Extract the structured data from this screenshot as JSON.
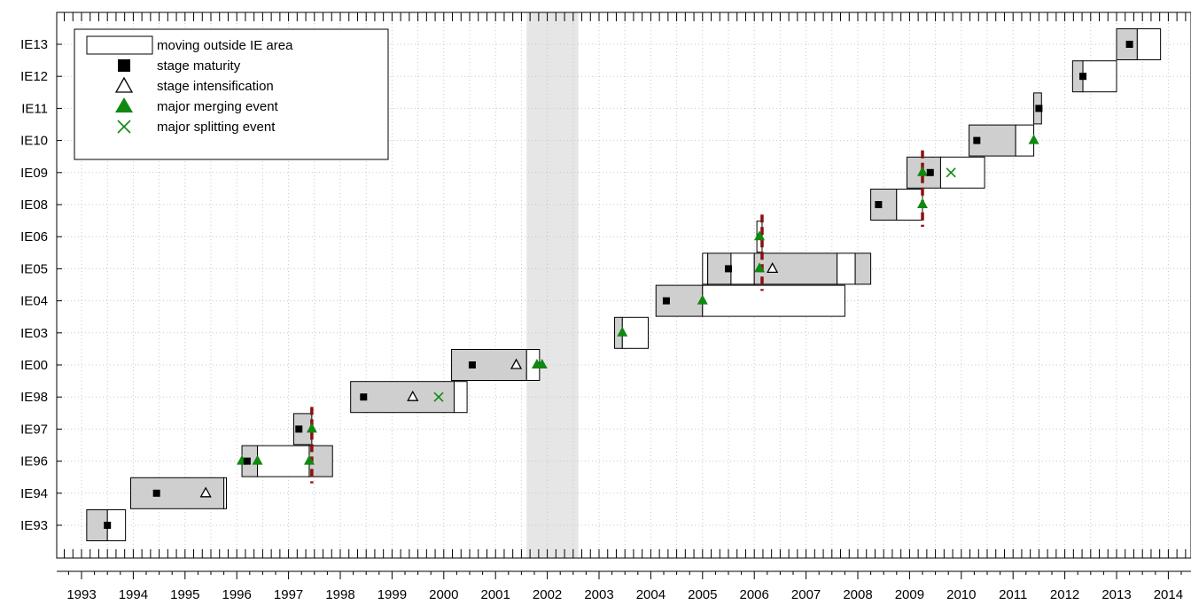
{
  "chart_data": {
    "type": "timeline",
    "xlim": [
      1992.5,
      2014.5
    ],
    "x_ticks": [
      1993,
      1994,
      1995,
      1996,
      1997,
      1998,
      1999,
      2000,
      2001,
      2002,
      2003,
      2004,
      2005,
      2006,
      2007,
      2008,
      2009,
      2010,
      2011,
      2012,
      2013,
      2014
    ],
    "events": [
      "IE93",
      "IE94",
      "IE96",
      "IE97",
      "IE98",
      "IE00",
      "IE03",
      "IE04",
      "IE05",
      "IE06",
      "IE08",
      "IE09",
      "IE10",
      "IE11",
      "IE12",
      "IE13"
    ],
    "grid": true,
    "shaded_period": [
      2001.6,
      2002.6
    ],
    "colors": {
      "inside": "#cfcfcf",
      "outside": "#ffffff",
      "merge": "#118811",
      "split": "#118811",
      "dashed": "#8b1010",
      "shade": "#e6e6e6"
    },
    "legend": {
      "position": "top-left",
      "entries": [
        {
          "key": "outside",
          "label": "moving outside IE area"
        },
        {
          "key": "maturity",
          "label": "stage maturity"
        },
        {
          "key": "intensification",
          "label": "stage intensification"
        },
        {
          "key": "merge",
          "label": "major merging event"
        },
        {
          "key": "split",
          "label": "major splitting event"
        }
      ]
    },
    "bars": [
      {
        "event": "IE93",
        "segments": [
          [
            1993.1,
            1993.5,
            "in"
          ],
          [
            1993.5,
            1993.85,
            "out"
          ]
        ]
      },
      {
        "event": "IE94",
        "segments": [
          [
            1993.95,
            1995.75,
            "in"
          ],
          [
            1995.75,
            1995.8,
            "out"
          ]
        ]
      },
      {
        "event": "IE96",
        "segments": [
          [
            1996.1,
            1996.4,
            "in"
          ],
          [
            1996.4,
            1997.4,
            "out"
          ],
          [
            1997.4,
            1997.85,
            "in"
          ]
        ]
      },
      {
        "event": "IE97",
        "segments": [
          [
            1997.1,
            1997.45,
            "in"
          ]
        ]
      },
      {
        "event": "IE98",
        "segments": [
          [
            1998.2,
            2000.2,
            "in"
          ],
          [
            2000.2,
            2000.45,
            "out"
          ]
        ]
      },
      {
        "event": "IE00",
        "segments": [
          [
            2000.15,
            2001.6,
            "in"
          ],
          [
            2001.6,
            2001.85,
            "out"
          ]
        ]
      },
      {
        "event": "IE03",
        "segments": [
          [
            2003.3,
            2003.45,
            "in"
          ],
          [
            2003.45,
            2003.95,
            "out"
          ]
        ]
      },
      {
        "event": "IE04",
        "segments": [
          [
            2004.1,
            2005.0,
            "in"
          ],
          [
            2005.0,
            2007.75,
            "out"
          ]
        ]
      },
      {
        "event": "IE05",
        "segments": [
          [
            2005.0,
            2005.1,
            "out"
          ],
          [
            2005.1,
            2005.55,
            "in"
          ],
          [
            2005.55,
            2006.0,
            "out"
          ],
          [
            2006.0,
            2007.6,
            "in"
          ],
          [
            2007.6,
            2007.95,
            "out"
          ],
          [
            2007.95,
            2008.25,
            "in"
          ]
        ]
      },
      {
        "event": "IE06",
        "segments": [
          [
            2006.05,
            2006.15,
            "out"
          ]
        ]
      },
      {
        "event": "IE08",
        "segments": [
          [
            2008.25,
            2008.75,
            "in"
          ],
          [
            2008.75,
            2009.25,
            "out"
          ]
        ]
      },
      {
        "event": "IE09",
        "segments": [
          [
            2008.95,
            2009.6,
            "in"
          ],
          [
            2009.6,
            2010.45,
            "out"
          ]
        ]
      },
      {
        "event": "IE10",
        "segments": [
          [
            2010.15,
            2011.05,
            "in"
          ],
          [
            2011.05,
            2011.4,
            "out"
          ]
        ]
      },
      {
        "event": "IE11",
        "segments": [
          [
            2011.4,
            2011.55,
            "in"
          ]
        ]
      },
      {
        "event": "IE12",
        "segments": [
          [
            2012.15,
            2012.35,
            "in"
          ],
          [
            2012.35,
            2013.0,
            "out"
          ]
        ]
      },
      {
        "event": "IE13",
        "segments": [
          [
            2013.0,
            2013.4,
            "in"
          ],
          [
            2013.4,
            2013.85,
            "out"
          ]
        ]
      }
    ],
    "markers": [
      {
        "type": "maturity",
        "event": "IE93",
        "x": 1993.5
      },
      {
        "type": "maturity",
        "event": "IE94",
        "x": 1994.45
      },
      {
        "type": "intensification",
        "event": "IE94",
        "x": 1995.4
      },
      {
        "type": "merge",
        "event": "IE96",
        "x": 1996.1
      },
      {
        "type": "maturity",
        "event": "IE96",
        "x": 1996.2
      },
      {
        "type": "merge",
        "event": "IE96",
        "x": 1996.4
      },
      {
        "type": "merge",
        "event": "IE96",
        "x": 1997.4
      },
      {
        "type": "maturity",
        "event": "IE97",
        "x": 1997.2
      },
      {
        "type": "merge",
        "event": "IE97",
        "x": 1997.45
      },
      {
        "type": "maturity",
        "event": "IE98",
        "x": 1998.45
      },
      {
        "type": "intensification",
        "event": "IE98",
        "x": 1999.4
      },
      {
        "type": "split",
        "event": "IE98",
        "x": 1999.9
      },
      {
        "type": "maturity",
        "event": "IE00",
        "x": 2000.55
      },
      {
        "type": "intensification",
        "event": "IE00",
        "x": 2001.4
      },
      {
        "type": "merge",
        "event": "IE00",
        "x": 2001.8
      },
      {
        "type": "merge",
        "event": "IE00",
        "x": 2001.9
      },
      {
        "type": "merge",
        "event": "IE03",
        "x": 2003.45
      },
      {
        "type": "maturity",
        "event": "IE04",
        "x": 2004.3
      },
      {
        "type": "merge",
        "event": "IE04",
        "x": 2005.0
      },
      {
        "type": "maturity",
        "event": "IE05",
        "x": 2005.5
      },
      {
        "type": "merge",
        "event": "IE05",
        "x": 2006.1
      },
      {
        "type": "intensification",
        "event": "IE05",
        "x": 2006.35
      },
      {
        "type": "merge",
        "event": "IE06",
        "x": 2006.1
      },
      {
        "type": "maturity",
        "event": "IE08",
        "x": 2008.4
      },
      {
        "type": "merge",
        "event": "IE08",
        "x": 2009.25
      },
      {
        "type": "merge",
        "event": "IE09",
        "x": 2009.25
      },
      {
        "type": "maturity",
        "event": "IE09",
        "x": 2009.4
      },
      {
        "type": "split",
        "event": "IE09",
        "x": 2009.8
      },
      {
        "type": "maturity",
        "event": "IE10",
        "x": 2010.3
      },
      {
        "type": "merge",
        "event": "IE10",
        "x": 2011.4
      },
      {
        "type": "maturity",
        "event": "IE11",
        "x": 2011.5
      },
      {
        "type": "maturity",
        "event": "IE12",
        "x": 2012.35
      },
      {
        "type": "maturity",
        "event": "IE13",
        "x": 2013.25
      }
    ],
    "dashed_lines": [
      {
        "x": 1997.45,
        "from": "IE96",
        "to": "IE97"
      },
      {
        "x": 2006.15,
        "from": "IE05",
        "to": "IE06"
      },
      {
        "x": 2009.25,
        "from": "IE08",
        "to": "IE09"
      }
    ]
  }
}
